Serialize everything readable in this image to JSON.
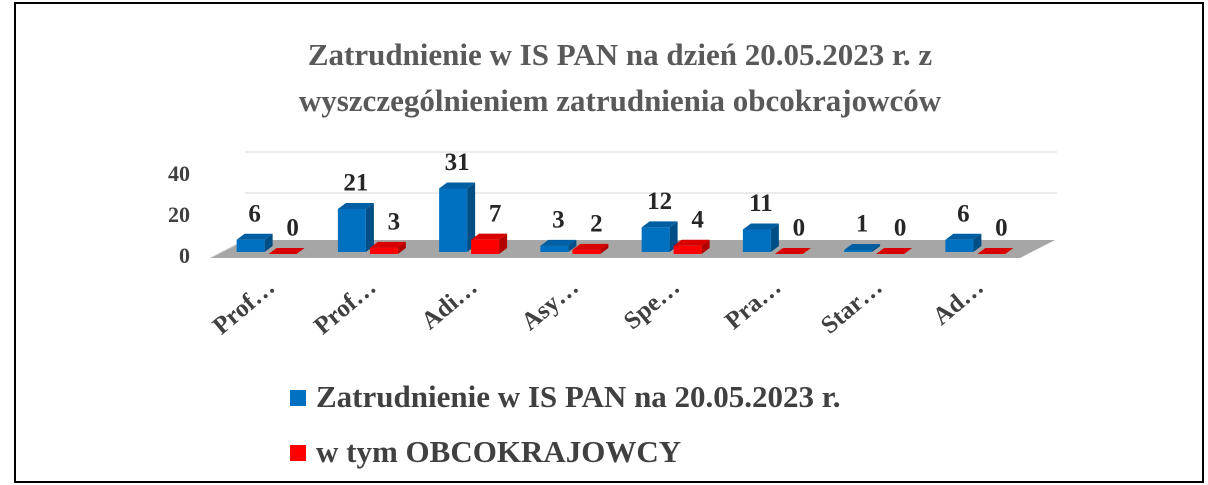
{
  "chart_data": {
    "type": "bar3d",
    "title": "Zatrudnienie w IS PAN na dzień 20.05.2023 r. z wyszczególnieniem zatrudnienia obcokrajowców",
    "categories": [
      "Prof…",
      "Prof…",
      "Adi…",
      "Asy…",
      "Spe…",
      "Pra…",
      "Star…",
      "Ad…"
    ],
    "series": [
      {
        "name": "Zatrudnienie w IS PAN na 20.05.2023 r.",
        "color": "#0070c0",
        "values": [
          6,
          21,
          31,
          3,
          12,
          11,
          1,
          6
        ]
      },
      {
        "name": "w tym OBCOKRAJOWCY",
        "color": "#ff0000",
        "values": [
          0,
          3,
          7,
          2,
          4,
          0,
          0,
          0
        ]
      }
    ],
    "ylim": [
      0,
      40
    ],
    "yticks": [
      0,
      20,
      40
    ],
    "grid": true
  }
}
